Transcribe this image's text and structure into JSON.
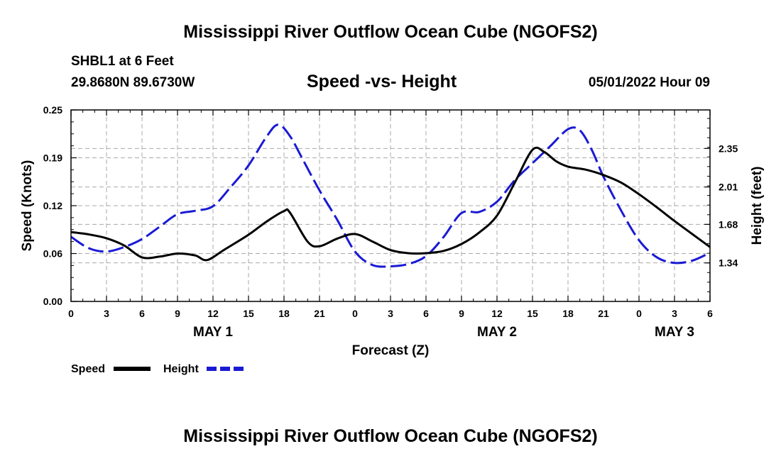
{
  "page": {
    "title_top": "Mississippi River Outflow Ocean Cube (NGOFS2)",
    "title_bottom": "Mississippi River Outflow Ocean Cube (NGOFS2)",
    "station": "SHBL1 at 6 Feet",
    "coords": "29.8680N  89.6730W",
    "datetime": "05/01/2022 Hour 09"
  },
  "colors": {
    "speed": "#000000",
    "height": "#1a1ad4",
    "grid": "#aaaaaa"
  },
  "chart_data": {
    "type": "line",
    "title": "Speed -vs- Height",
    "xlabel": "Forecast (Z)",
    "ylabel_left": "Speed (Knots)",
    "ylabel_right": "Height (feet)",
    "x_range": [
      0,
      54
    ],
    "x_ticks": [
      {
        "x": 0,
        "label": "0"
      },
      {
        "x": 3,
        "label": "3"
      },
      {
        "x": 6,
        "label": "6"
      },
      {
        "x": 9,
        "label": "9"
      },
      {
        "x": 12,
        "label": "12"
      },
      {
        "x": 15,
        "label": "15"
      },
      {
        "x": 18,
        "label": "18"
      },
      {
        "x": 21,
        "label": "21"
      },
      {
        "x": 24,
        "label": "0"
      },
      {
        "x": 27,
        "label": "3"
      },
      {
        "x": 30,
        "label": "6"
      },
      {
        "x": 33,
        "label": "9"
      },
      {
        "x": 36,
        "label": "12"
      },
      {
        "x": 39,
        "label": "15"
      },
      {
        "x": 42,
        "label": "18"
      },
      {
        "x": 45,
        "label": "21"
      },
      {
        "x": 48,
        "label": "0"
      },
      {
        "x": 51,
        "label": "3"
      },
      {
        "x": 54,
        "label": "6"
      }
    ],
    "day_labels": [
      {
        "x": 12,
        "label": "MAY 1"
      },
      {
        "x": 36,
        "label": "MAY 2"
      },
      {
        "x": 51,
        "label": "MAY 3"
      }
    ],
    "y_left": {
      "range": [
        0,
        0.25
      ],
      "ticks": [
        {
          "v": 0,
          "label": "0.00"
        },
        {
          "v": 0.0625,
          "label": "0.06"
        },
        {
          "v": 0.125,
          "label": "0.12"
        },
        {
          "v": 0.1875,
          "label": "0.19"
        },
        {
          "v": 0.25,
          "label": "0.25"
        }
      ]
    },
    "y_right": {
      "range": [
        1.0,
        2.69
      ],
      "ticks": [
        {
          "v": 1.34,
          "label": "1.34"
        },
        {
          "v": 1.68,
          "label": "1.68"
        },
        {
          "v": 2.01,
          "label": "2.01"
        },
        {
          "v": 2.35,
          "label": "2.35"
        }
      ]
    },
    "grid": true,
    "series": [
      {
        "name": "Speed",
        "axis": "left",
        "style": "solid",
        "x": [
          0,
          1.5,
          3,
          4.5,
          6,
          7.5,
          9,
          10.5,
          11.5,
          13,
          15,
          16.5,
          18,
          18.5,
          20,
          21,
          22.5,
          24,
          25.5,
          27,
          28.5,
          30,
          31.5,
          33,
          34.5,
          36,
          37.5,
          39,
          40,
          41,
          42,
          43.5,
          45,
          46.5,
          48,
          49.5,
          51,
          52.5,
          54
        ],
        "values": [
          0.0905,
          0.0875,
          0.0825,
          0.073,
          0.0575,
          0.0585,
          0.0625,
          0.06,
          0.054,
          0.068,
          0.087,
          0.104,
          0.118,
          0.116,
          0.078,
          0.072,
          0.082,
          0.088,
          0.078,
          0.067,
          0.063,
          0.063,
          0.066,
          0.075,
          0.09,
          0.112,
          0.155,
          0.198,
          0.195,
          0.183,
          0.176,
          0.172,
          0.165,
          0.155,
          0.14,
          0.123,
          0.105,
          0.088,
          0.071
        ]
      },
      {
        "name": "Height",
        "axis": "right",
        "style": "dashed",
        "x": [
          0,
          1.5,
          3,
          4.5,
          6,
          7.5,
          9,
          10.5,
          12,
          13.5,
          15,
          16.5,
          17.5,
          18.5,
          19.5,
          21,
          22.5,
          24,
          25.5,
          27,
          28.5,
          30,
          31.5,
          33,
          34.5,
          36,
          37.5,
          39,
          40.5,
          42,
          43,
          44,
          45,
          46.5,
          48,
          49.5,
          51,
          52.5,
          54
        ],
        "values": [
          1.57,
          1.47,
          1.44,
          1.48,
          1.55,
          1.66,
          1.77,
          1.8,
          1.84,
          2.01,
          2.2,
          2.45,
          2.56,
          2.46,
          2.27,
          1.98,
          1.72,
          1.44,
          1.32,
          1.31,
          1.33,
          1.4,
          1.57,
          1.78,
          1.79,
          1.88,
          2.07,
          2.22,
          2.37,
          2.52,
          2.51,
          2.34,
          2.1,
          1.8,
          1.54,
          1.39,
          1.34,
          1.36,
          1.43
        ]
      }
    ]
  }
}
